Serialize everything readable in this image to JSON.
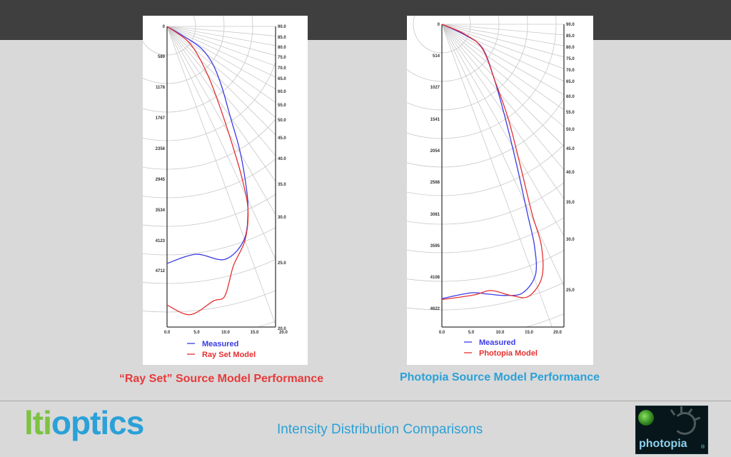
{
  "colors": {
    "measured": "#3b3be6",
    "model": "#e63030",
    "grid": "#c8c8c8"
  },
  "slide": {
    "title": "Intensity Distribution Comparisons",
    "brand": {
      "part1": "lti",
      "part2": "optics"
    },
    "logo_text": "photopia",
    "logo_mark": "®"
  },
  "chart_data": [
    {
      "type": "line",
      "caption": "“Ray Set” Source Model Performance",
      "y_ticks": [
        "0",
        "589",
        "1178",
        "1767",
        "2356",
        "2945",
        "3534",
        "4123",
        "4712"
      ],
      "x_ticks": [
        "0.0",
        "5.0",
        "10.0",
        "15.0",
        "20.0"
      ],
      "angle_labels": [
        "90.0",
        "85.0",
        "80.0",
        "75.0",
        "70.0",
        "65.0",
        "60.0",
        "55.0",
        "50.0",
        "45.0",
        "40.0",
        "35.0",
        "30.0",
        "25.0",
        "20.0"
      ],
      "legend": [
        "Measured",
        "Ray Set Model"
      ],
      "series": [
        {
          "name": "Measured",
          "points": [
            [
              0,
              0
            ],
            [
              3.0,
              197
            ],
            [
              6.0,
              432
            ],
            [
              8.0,
              746
            ],
            [
              9.5,
              1179
            ],
            [
              11.0,
              1767
            ],
            [
              12.5,
              2356
            ],
            [
              13.5,
              2945
            ],
            [
              14.0,
              3534
            ],
            [
              13.3,
              4123
            ],
            [
              10.0,
              4496
            ],
            [
              5.0,
              4398
            ],
            [
              0,
              4575
            ]
          ]
        },
        {
          "name": "Ray Set Model",
          "points": [
            [
              0,
              0
            ],
            [
              3.5,
              275
            ],
            [
              5.5,
              589
            ],
            [
              7.5,
              1060
            ],
            [
              9.5,
              1669
            ],
            [
              11.5,
              2356
            ],
            [
              13.0,
              2945
            ],
            [
              14.0,
              3534
            ],
            [
              13.5,
              4123
            ],
            [
              11.5,
              4614
            ],
            [
              10.0,
              5201
            ],
            [
              8.0,
              5299
            ],
            [
              4.0,
              5563
            ],
            [
              0,
              5377
            ]
          ]
        }
      ]
    },
    {
      "type": "line",
      "caption": "Photopia Source Model Performance",
      "y_ticks": [
        "0",
        "514",
        "1027",
        "1541",
        "2054",
        "2568",
        "3081",
        "3595",
        "4108",
        "4622"
      ],
      "x_ticks": [
        "0.0",
        "5.0",
        "10.0",
        "15.0",
        "20.0"
      ],
      "angle_labels": [
        "90.0",
        "85.0",
        "80.0",
        "75.0",
        "70.0",
        "65.0",
        "60.0",
        "55.0",
        "50.0",
        "45.0",
        "40.0",
        "35.0",
        "30.0",
        "25.0"
      ],
      "legend": [
        "Measured",
        "Photopia Model"
      ],
      "series": [
        {
          "name": "Measured",
          "points": [
            [
              0,
              0
            ],
            [
              4.0,
              175
            ],
            [
              7.0,
              385
            ],
            [
              9.0,
              874
            ],
            [
              11.0,
              1541
            ],
            [
              13.0,
              2312
            ],
            [
              14.8,
              3081
            ],
            [
              16.0,
              3595
            ],
            [
              16.2,
              4066
            ],
            [
              14.0,
              4364
            ],
            [
              11.0,
              4408
            ],
            [
              8.0,
              4385
            ],
            [
              5.0,
              4365
            ],
            [
              0,
              4459
            ]
          ]
        },
        {
          "name": "Photopia Model",
          "points": [
            [
              0,
              0
            ],
            [
              4.0,
              162
            ],
            [
              7.0,
              398
            ],
            [
              9.2,
              925
            ],
            [
              11.5,
              1541
            ],
            [
              13.6,
              2312
            ],
            [
              15.6,
              3081
            ],
            [
              17.2,
              3595
            ],
            [
              17.3,
              4108
            ],
            [
              15.0,
              4421
            ],
            [
              12.0,
              4408
            ],
            [
              8.5,
              4327
            ],
            [
              5.5,
              4400
            ],
            [
              0,
              4474
            ]
          ]
        }
      ]
    }
  ]
}
